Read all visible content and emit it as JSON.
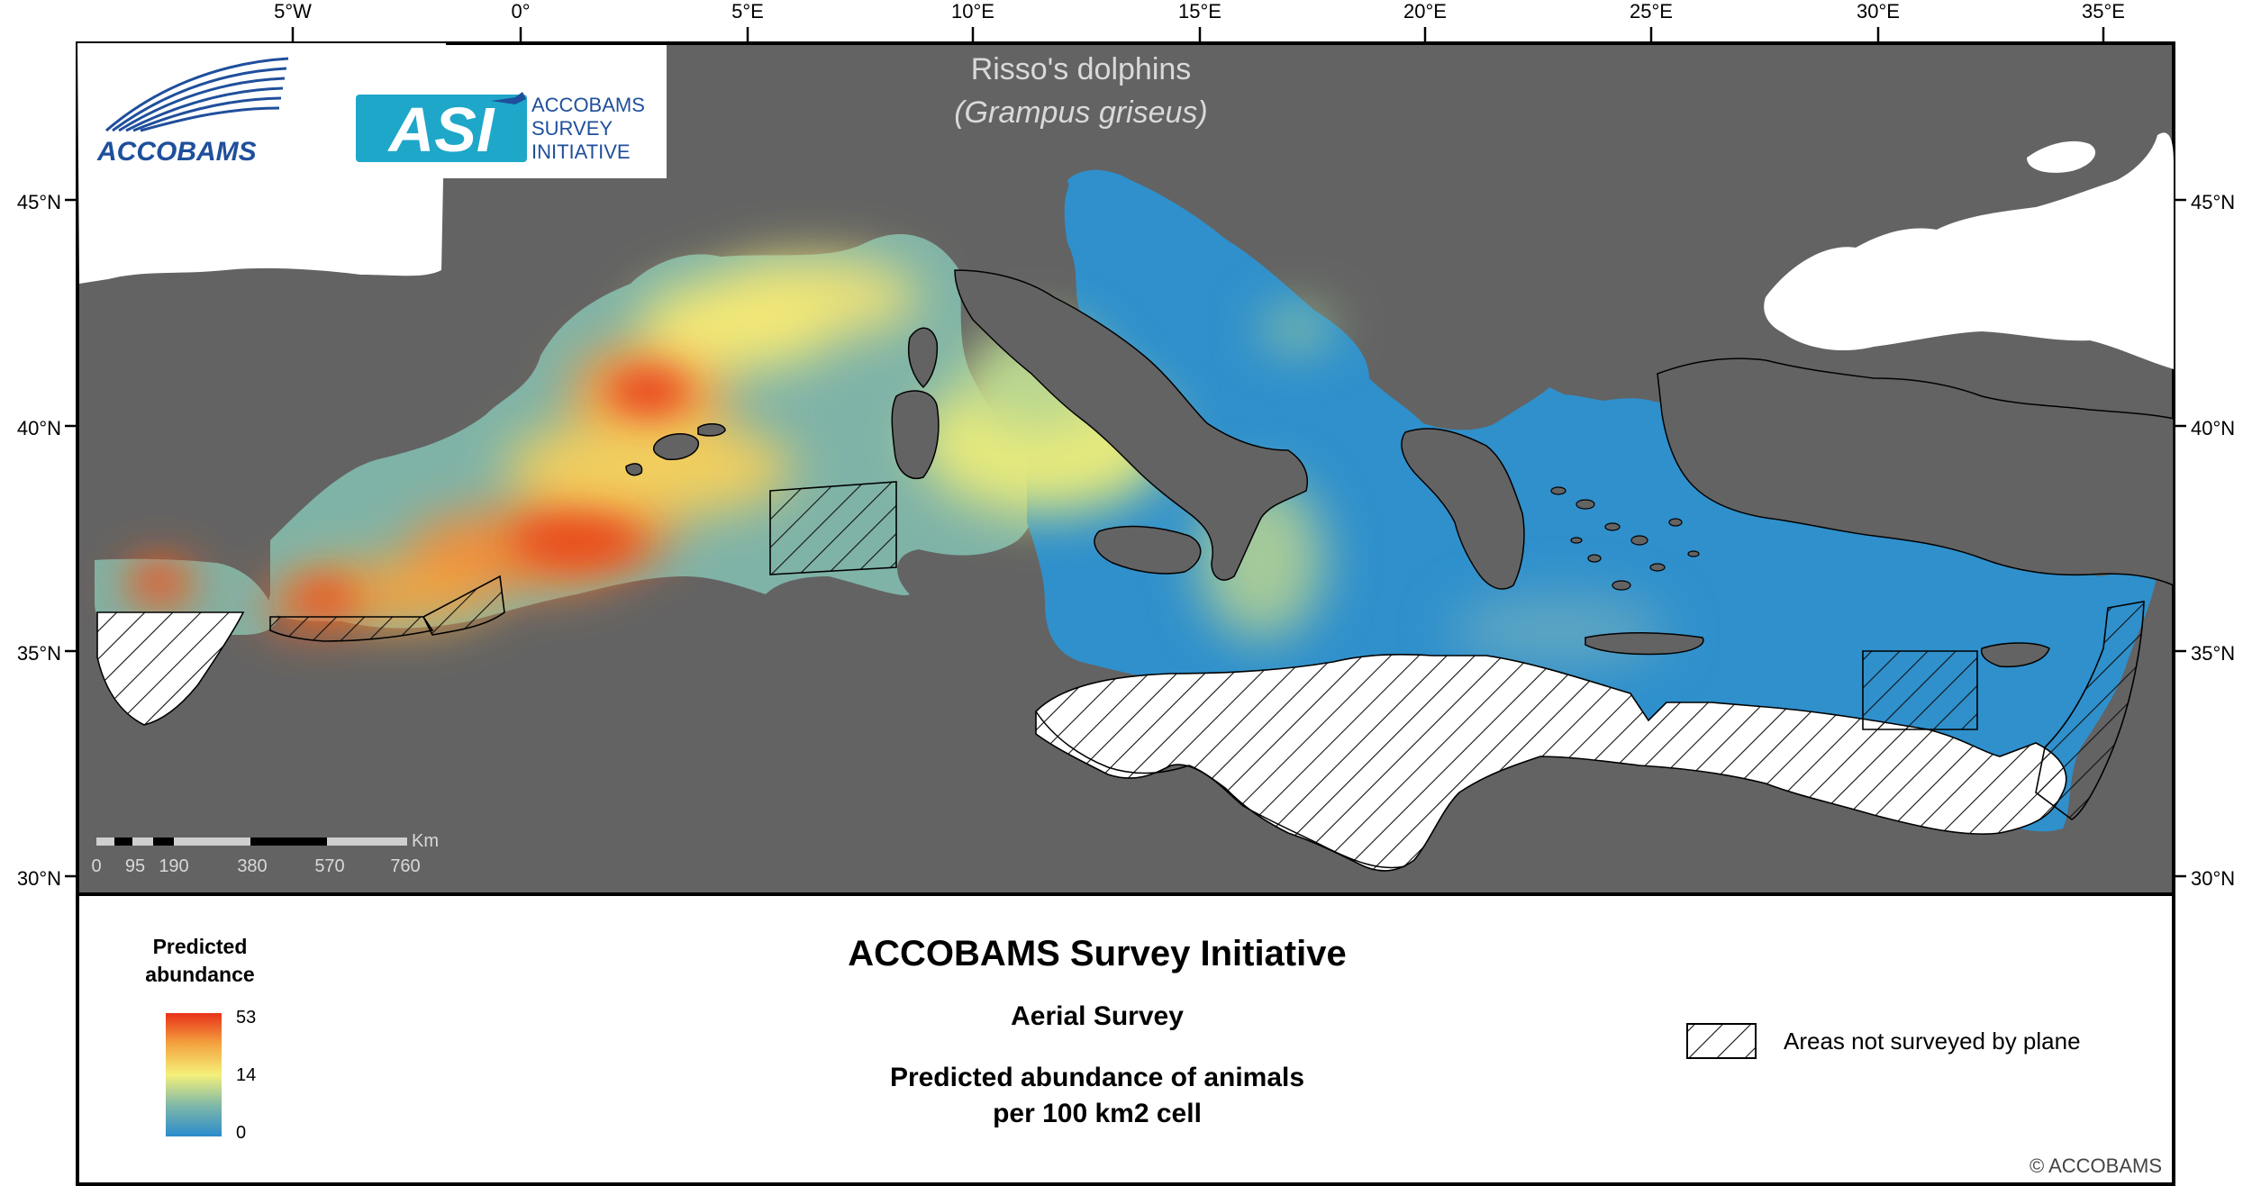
{
  "map": {
    "title_line1": "Risso's dolphins",
    "title_line2": "(Grampus griseus)",
    "lon_labels": [
      "5°W",
      "0°",
      "5°E",
      "10°E",
      "15°E",
      "20°E",
      "25°E",
      "30°E",
      "35°E"
    ],
    "lat_labels": [
      "45°N",
      "40°N",
      "35°N",
      "30°N"
    ],
    "scale_bar": {
      "unit": "Km",
      "ticks": [
        "0",
        "95",
        "190",
        "380",
        "570",
        "760"
      ]
    },
    "logos": {
      "accobams": "ACCOBAMS",
      "asi_mark": "ASI",
      "asi_line1": "ACCOBAMS",
      "asi_line2": "SURVEY",
      "asi_line3": "INITIATIVE"
    },
    "colors": {
      "background_land": "#636363",
      "outside_land": "#ffffff",
      "low": "#2b8ccc",
      "mid": "#f5f07a",
      "high": "#e8431d"
    }
  },
  "legend": {
    "title_line1": "Predicted",
    "title_line2": "abundance",
    "max": "53",
    "mid": "14",
    "min": "0",
    "hatch_label": "Areas not surveyed by plane"
  },
  "footer": {
    "heading": "ACCOBAMS Survey Initiative",
    "subheading": "Aerial Survey",
    "desc_line1": "Predicted abundance of animals",
    "desc_line2": "per 100 km2 cell",
    "copyright": "© ACCOBAMS"
  }
}
